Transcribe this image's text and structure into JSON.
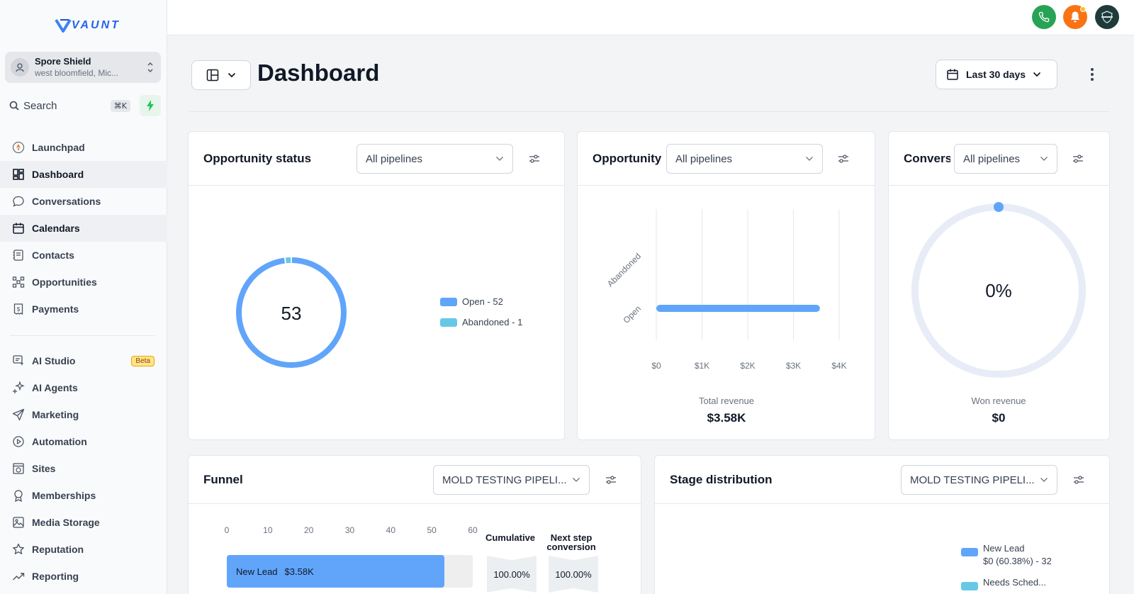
{
  "brand": {
    "logo_text": "VAUNT"
  },
  "account": {
    "name": "Spore Shield",
    "location": "west bloomfield, Mic..."
  },
  "search": {
    "label": "Search",
    "shortcut": "⌘K"
  },
  "nav": {
    "items": [
      {
        "label": "Launchpad",
        "icon": "rocket-icon"
      },
      {
        "label": "Dashboard",
        "icon": "grid-icon"
      },
      {
        "label": "Conversations",
        "icon": "chat-icon"
      },
      {
        "label": "Calendars",
        "icon": "calendar-icon"
      },
      {
        "label": "Contacts",
        "icon": "contacts-icon"
      },
      {
        "label": "Opportunities",
        "icon": "opportunities-icon"
      },
      {
        "label": "Payments",
        "icon": "payments-icon"
      }
    ],
    "items2": [
      {
        "label": "AI Studio",
        "icon": "ai-studio-icon",
        "badge": "Beta"
      },
      {
        "label": "AI Agents",
        "icon": "sparkle-icon"
      },
      {
        "label": "Marketing",
        "icon": "send-icon"
      },
      {
        "label": "Automation",
        "icon": "automation-icon"
      },
      {
        "label": "Sites",
        "icon": "sites-icon"
      },
      {
        "label": "Memberships",
        "icon": "award-icon"
      },
      {
        "label": "Media Storage",
        "icon": "image-icon"
      },
      {
        "label": "Reputation",
        "icon": "star-icon"
      },
      {
        "label": "Reporting",
        "icon": "trend-icon"
      }
    ]
  },
  "header": {
    "title": "Dashboard",
    "date_range": "Last 30 days"
  },
  "colors": {
    "accent": "#60a5fa",
    "cyan": "#67c8e6",
    "green": "#27a355",
    "orange": "#f97316",
    "dark": "#1f3a3a"
  },
  "cards": {
    "opportunity_status": {
      "title": "Opportunity status",
      "filter": "All pipelines",
      "total": "53",
      "legend": [
        "Open - 52",
        "Abandoned - 1"
      ]
    },
    "opportunity_value": {
      "title": "Opportunity",
      "filter": "All pipelines",
      "caption": "Total revenue",
      "value": "$3.58K"
    },
    "conversion": {
      "title": "Conversion",
      "filter": "All pipelines",
      "center": "0%",
      "caption": "Won revenue",
      "value": "$0"
    },
    "funnel": {
      "title": "Funnel",
      "filter": "MOLD TESTING PIPELI...",
      "axis_ticks": [
        "0",
        "10",
        "20",
        "30",
        "40",
        "50",
        "60"
      ],
      "col_cumulative": "Cumulative",
      "col_next_line1": "Next step",
      "col_next_line2": "conversion",
      "row_label": "New Lead",
      "row_value": "$3.58K",
      "cumulative": "100.00%",
      "next_step": "100.00%"
    },
    "stage_distribution": {
      "title": "Stage distribution",
      "filter": "MOLD TESTING PIPELI...",
      "legend": [
        {
          "label": "New Lead",
          "detail": "$0 (60.38%) - 32"
        },
        {
          "label": "Needs Sched...",
          "detail": ""
        }
      ]
    }
  },
  "chart_data": [
    {
      "type": "pie",
      "title": "Opportunity status",
      "categories": [
        "Open",
        "Abandoned"
      ],
      "values": [
        52,
        1
      ]
    },
    {
      "type": "bar",
      "title": "Opportunity",
      "categories": [
        "Abandoned",
        "Open"
      ],
      "values": [
        0,
        3580
      ],
      "xlabel": "Total revenue",
      "x_ticks": [
        "$0",
        "$1K",
        "$2K",
        "$3K",
        "$4K"
      ],
      "xlim": [
        0,
        4000
      ]
    },
    {
      "type": "pie",
      "title": "Conversion",
      "categories": [
        "Won"
      ],
      "values": [
        0
      ]
    },
    {
      "type": "bar",
      "title": "Funnel",
      "categories": [
        "New Lead"
      ],
      "values": [
        53
      ],
      "xlim": [
        0,
        60
      ]
    }
  ]
}
